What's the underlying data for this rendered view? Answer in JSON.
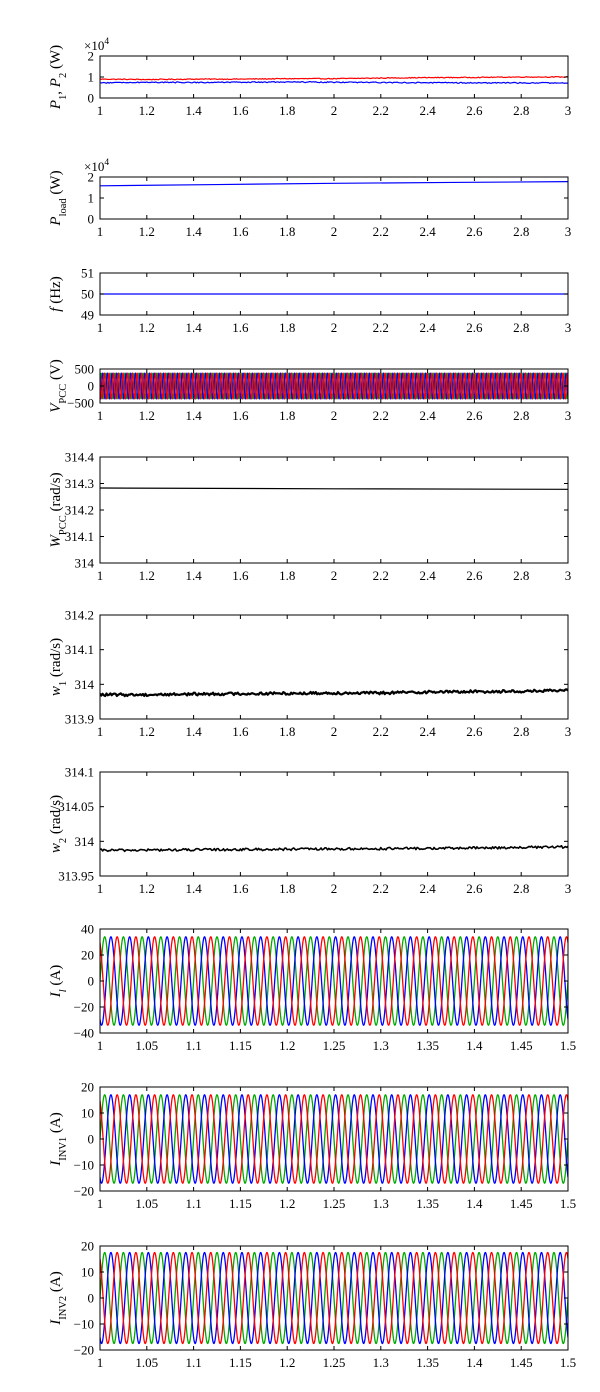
{
  "chart_data": [
    {
      "id": "p1p2",
      "type": "line",
      "ylabel": [
        {
          "t": "P",
          "it": 1
        },
        {
          "t": "1",
          "sub": 1
        },
        {
          "t": ", "
        },
        {
          "t": "P",
          "it": 1
        },
        {
          "t": "2",
          "sub": 1
        },
        {
          "t": " (W)"
        }
      ],
      "exponent": "×10",
      "exponent_power": "4",
      "xlim": [
        1,
        3
      ],
      "xticks": [
        "1",
        "1.2",
        "1.4",
        "1.6",
        "1.8",
        "2",
        "2.2",
        "2.4",
        "2.6",
        "2.8",
        "3"
      ],
      "ylim": [
        0,
        2
      ],
      "yticks": [
        "0",
        "1",
        "2"
      ],
      "series": [
        {
          "color": "#ff0000",
          "kind": "noisy",
          "x": [
            1,
            1.2,
            1.4,
            1.6,
            1.8,
            2,
            2.2,
            2.4,
            2.6,
            2.8,
            3
          ],
          "y": [
            0.9,
            0.88,
            0.9,
            0.9,
            0.92,
            0.92,
            0.95,
            0.97,
            0.98,
            1.0,
            1.0
          ],
          "noise": 0.02
        },
        {
          "color": "#0000ff",
          "kind": "noisy",
          "x": [
            1,
            1.2,
            1.4,
            1.6,
            1.8,
            2,
            2.2,
            2.4,
            2.6,
            2.8,
            3
          ],
          "y": [
            0.72,
            0.75,
            0.74,
            0.75,
            0.76,
            0.75,
            0.74,
            0.73,
            0.72,
            0.72,
            0.72
          ],
          "noise": 0.025
        }
      ]
    },
    {
      "id": "pload",
      "type": "line",
      "ylabel": [
        {
          "t": "P",
          "it": 1
        },
        {
          "t": "load",
          "sub": 1
        },
        {
          "t": " (W)"
        }
      ],
      "exponent": "×10",
      "exponent_power": "4",
      "xlim": [
        1,
        3
      ],
      "xticks": [
        "1",
        "1.2",
        "1.4",
        "1.6",
        "1.8",
        "2",
        "2.2",
        "2.4",
        "2.6",
        "2.8",
        "3"
      ],
      "ylim": [
        0,
        2
      ],
      "yticks": [
        "0",
        "1",
        "2"
      ],
      "series": [
        {
          "color": "#0000ff",
          "kind": "line",
          "x": [
            1,
            1.5,
            2,
            2.5,
            3
          ],
          "y": [
            1.58,
            1.64,
            1.7,
            1.74,
            1.78
          ]
        }
      ]
    },
    {
      "id": "freq",
      "type": "line",
      "ylabel": [
        {
          "t": "f",
          "it": 1
        },
        {
          "t": " (Hz)"
        }
      ],
      "xlim": [
        1,
        3
      ],
      "xticks": [
        "1",
        "1.2",
        "1.4",
        "1.6",
        "1.8",
        "2",
        "2.2",
        "2.4",
        "2.6",
        "2.8",
        "3"
      ],
      "ylim": [
        49,
        51
      ],
      "yticks": [
        "49",
        "50",
        "51"
      ],
      "series": [
        {
          "color": "#0000ff",
          "kind": "line",
          "x": [
            1,
            3
          ],
          "y": [
            50,
            50
          ]
        }
      ]
    },
    {
      "id": "vpcc",
      "type": "line",
      "ylabel": [
        {
          "t": "V",
          "it": 1
        },
        {
          "t": "PCC",
          "sub": 1
        },
        {
          "t": " (V)"
        }
      ],
      "xlim": [
        1,
        3
      ],
      "xticks": [
        "1",
        "1.2",
        "1.4",
        "1.6",
        "1.8",
        "2",
        "2.2",
        "2.4",
        "2.6",
        "2.8",
        "3"
      ],
      "ylim": [
        -500,
        500
      ],
      "yticks": [
        "−500",
        "0",
        "500"
      ],
      "series": [
        {
          "color": "#00aa00",
          "kind": "sine",
          "amplitude": 380,
          "frequency": 50,
          "phase_deg": 0
        },
        {
          "color": "#0000ff",
          "kind": "sine",
          "amplitude": 380,
          "frequency": 50,
          "phase_deg": -120
        },
        {
          "color": "#ff0000",
          "kind": "sine",
          "amplitude": 380,
          "frequency": 50,
          "phase_deg": 120
        }
      ]
    },
    {
      "id": "wpcc",
      "type": "line",
      "ylabel": [
        {
          "t": "W",
          "it": 1
        },
        {
          "t": "PCC",
          "sub": 1
        },
        {
          "t": " (rad/s)"
        }
      ],
      "xlim": [
        1,
        3
      ],
      "xticks": [
        "1",
        "1.2",
        "1.4",
        "1.6",
        "1.8",
        "2",
        "2.2",
        "2.4",
        "2.6",
        "2.8",
        "3"
      ],
      "ylim": [
        314,
        314.4
      ],
      "yticks": [
        "314",
        "314.1",
        "314.2",
        "314.3",
        "314.4"
      ],
      "series": [
        {
          "color": "#000000",
          "kind": "line",
          "x": [
            1,
            2,
            3
          ],
          "y": [
            314.283,
            314.28,
            314.278
          ]
        }
      ]
    },
    {
      "id": "w1",
      "type": "line",
      "ylabel": [
        {
          "t": "w",
          "it": 1
        },
        {
          "t": "1",
          "sub": 1
        },
        {
          "t": " (rad/s)"
        }
      ],
      "xlim": [
        1,
        3
      ],
      "xticks": [
        "1",
        "1.2",
        "1.4",
        "1.6",
        "1.8",
        "2",
        "2.2",
        "2.4",
        "2.6",
        "2.8",
        "3"
      ],
      "ylim": [
        313.9,
        314.2
      ],
      "yticks": [
        "313.9",
        "314",
        "314.1",
        "314.2"
      ],
      "series": [
        {
          "color": "#000000",
          "kind": "noisy",
          "width": 2.2,
          "x": [
            1,
            1.2,
            1.4,
            1.6,
            1.8,
            2,
            2.2,
            2.4,
            2.6,
            2.8,
            3
          ],
          "y": [
            313.97,
            313.97,
            313.972,
            313.973,
            313.974,
            313.975,
            313.975,
            313.978,
            313.979,
            313.98,
            313.982
          ],
          "noise": 0.004
        }
      ]
    },
    {
      "id": "w2",
      "type": "line",
      "ylabel": [
        {
          "t": "w",
          "it": 1
        },
        {
          "t": "2",
          "sub": 1
        },
        {
          "t": " (rad/s)"
        }
      ],
      "xlim": [
        1,
        3
      ],
      "xticks": [
        "1",
        "1.2",
        "1.4",
        "1.6",
        "1.8",
        "2",
        "2.2",
        "2.4",
        "2.6",
        "2.8",
        "3"
      ],
      "ylim": [
        313.95,
        314.1
      ],
      "yticks": [
        "313.95",
        "314",
        "314.05",
        "314.1"
      ],
      "series": [
        {
          "color": "#000000",
          "kind": "noisy",
          "width": 1.6,
          "x": [
            1,
            1.5,
            2,
            2.5,
            3
          ],
          "y": [
            313.987,
            313.988,
            313.989,
            313.99,
            313.992
          ],
          "noise": 0.0018
        }
      ]
    },
    {
      "id": "il",
      "type": "line",
      "ylabel": [
        {
          "t": "I",
          "it": 1
        },
        {
          "t": "l",
          "sub": 1,
          "it": 1
        },
        {
          "t": " (A)"
        }
      ],
      "xlim": [
        1,
        1.5
      ],
      "xticks": [
        "1",
        "1.05",
        "1.1",
        "1.15",
        "1.2",
        "1.25",
        "1.3",
        "1.35",
        "1.4",
        "1.45",
        "1.5"
      ],
      "ylim": [
        -40,
        40
      ],
      "yticks": [
        "−40",
        "−20",
        "0",
        "20",
        "40"
      ],
      "series": [
        {
          "color": "#00aa00",
          "kind": "sine",
          "amplitude": 34,
          "frequency": 50,
          "phase_deg": 0
        },
        {
          "color": "#0000ff",
          "kind": "sine",
          "amplitude": 34,
          "frequency": 50,
          "phase_deg": -120
        },
        {
          "color": "#ff0000",
          "kind": "sine",
          "amplitude": 34,
          "frequency": 50,
          "phase_deg": 120
        }
      ]
    },
    {
      "id": "iinv1",
      "type": "line",
      "ylabel": [
        {
          "t": "I",
          "it": 1
        },
        {
          "t": "INV1",
          "sub": 1
        },
        {
          "t": " (A)"
        }
      ],
      "xlim": [
        1,
        1.5
      ],
      "xticks": [
        "1",
        "1.05",
        "1.1",
        "1.15",
        "1.2",
        "1.25",
        "1.3",
        "1.35",
        "1.4",
        "1.45",
        "1.5"
      ],
      "ylim": [
        -20,
        20
      ],
      "yticks": [
        "−20",
        "−10",
        "0",
        "10",
        "20"
      ],
      "series": [
        {
          "color": "#00aa00",
          "kind": "sine",
          "amplitude": 17,
          "frequency": 50,
          "phase_deg": 0
        },
        {
          "color": "#0000ff",
          "kind": "sine",
          "amplitude": 17,
          "frequency": 50,
          "phase_deg": -120
        },
        {
          "color": "#ff0000",
          "kind": "sine",
          "amplitude": 17,
          "frequency": 50,
          "phase_deg": 120
        }
      ]
    },
    {
      "id": "iinv2",
      "type": "line",
      "ylabel": [
        {
          "t": "I",
          "it": 1
        },
        {
          "t": "INV2",
          "sub": 1
        },
        {
          "t": " (A)"
        }
      ],
      "xlim": [
        1,
        1.5
      ],
      "xticks": [
        "1",
        "1.05",
        "1.1",
        "1.15",
        "1.2",
        "1.25",
        "1.3",
        "1.35",
        "1.4",
        "1.45",
        "1.5"
      ],
      "ylim": [
        -20,
        20
      ],
      "yticks": [
        "−20",
        "−10",
        "0",
        "10",
        "20"
      ],
      "series": [
        {
          "color": "#00aa00",
          "kind": "sine",
          "amplitude": 17.5,
          "frequency": 50,
          "phase_deg": 0
        },
        {
          "color": "#0000ff",
          "kind": "sine",
          "amplitude": 17.5,
          "frequency": 50,
          "phase_deg": -120
        },
        {
          "color": "#ff0000",
          "kind": "sine",
          "amplitude": 17.5,
          "frequency": 50,
          "phase_deg": 120
        }
      ]
    }
  ]
}
